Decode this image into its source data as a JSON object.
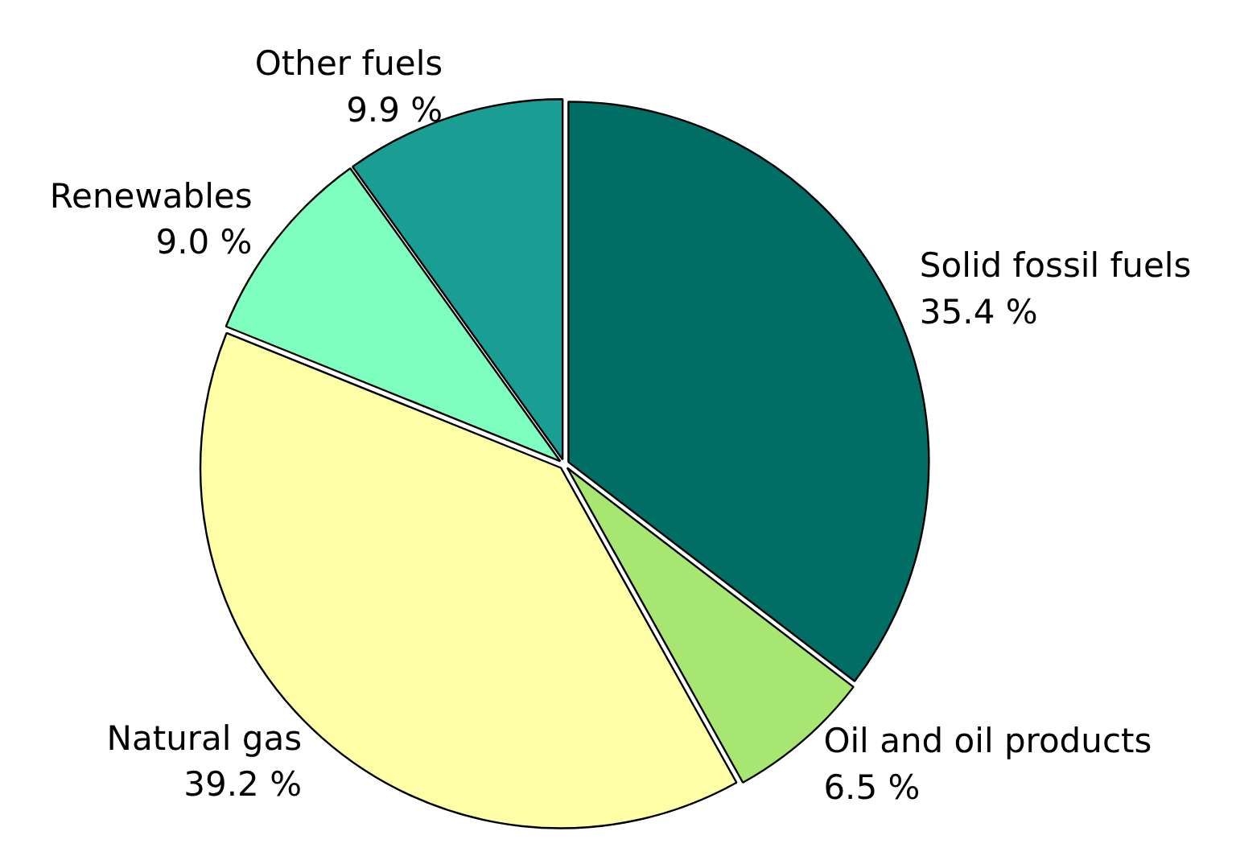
{
  "chart_data": {
    "type": "pie",
    "categories": [
      "Solid fossil fuels",
      "Oil and oil products",
      "Natural gas",
      "Renewables",
      "Other fuels"
    ],
    "values": [
      35.4,
      6.5,
      39.2,
      9.0,
      9.9
    ],
    "colors": [
      "#006e64",
      "#a8e672",
      "#ffffa8",
      "#7fffbf",
      "#1a9e94"
    ],
    "value_labels": [
      "35.4 %",
      "6.5 %",
      "39.2 %",
      "9.0 %",
      "9.9 %"
    ]
  }
}
